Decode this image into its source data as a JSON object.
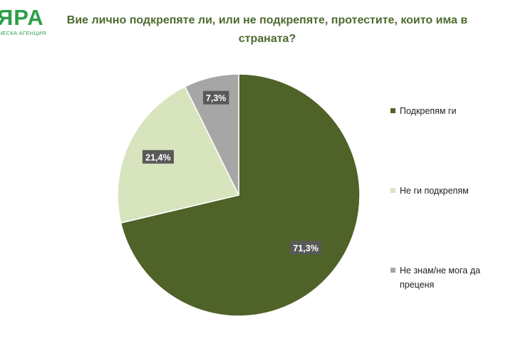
{
  "logo": {
    "mark": "ЯРА",
    "subtitle": "ЧЕСКА АГЕНЦИЯ"
  },
  "chart_data": {
    "type": "pie",
    "title": "Вие лично подкрепяте ли, или не подкрепяте, протестите, които има в страната?",
    "categories": [
      "Подкрепям ги",
      "Не ги подкрепям",
      "Не знам/не мога да преценя"
    ],
    "values": [
      71.3,
      21.4,
      7.3
    ],
    "labels": [
      "71,3%",
      "21,4%",
      "7,3%"
    ],
    "colors": [
      "#4f6228",
      "#d7e4bd",
      "#a6a6a6"
    ],
    "legend_position": "right"
  }
}
